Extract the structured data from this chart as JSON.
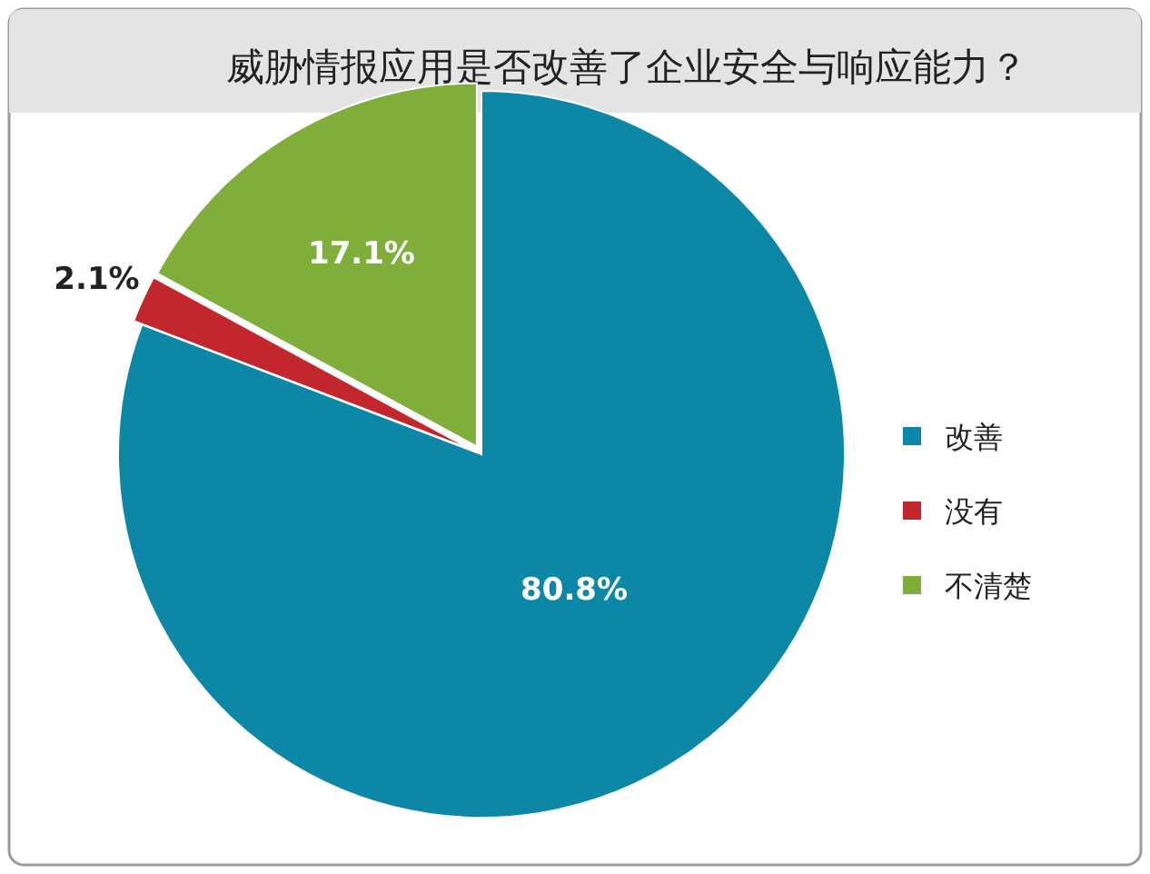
{
  "chart_data": {
    "type": "pie",
    "title": "威胁情报应用是否改善了企业安全与响应能力？",
    "categories": [
      "改善",
      "没有",
      "不清楚"
    ],
    "values": [
      80.8,
      2.1,
      17.1
    ],
    "colors": [
      "#0c87a5",
      "#c1272d",
      "#7fae3b"
    ],
    "value_labels": [
      "80.8%",
      "2.1%",
      "17.1%"
    ],
    "legend": "right"
  }
}
